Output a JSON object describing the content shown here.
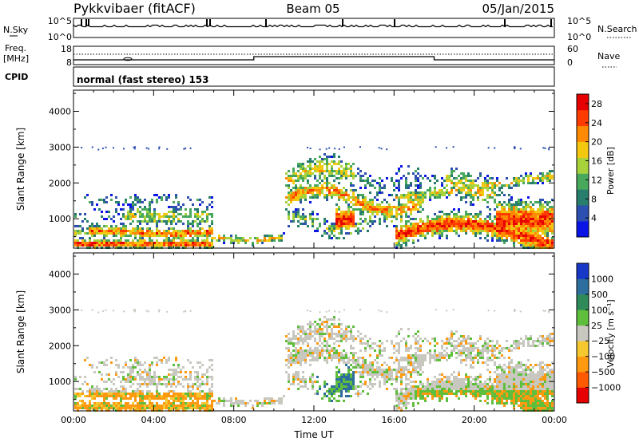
{
  "header": {
    "station": "Pykkvibaer (fitACF)",
    "beam": "Beam 05",
    "date": "05/Jan/2015"
  },
  "panels": {
    "nsky": {
      "label": "N.Sky",
      "tick_top": "10^5",
      "tick_bottom": "10^0",
      "right_label": "N.Search",
      "right_tick_top": "10^5",
      "right_tick_bottom": "10^0"
    },
    "freq": {
      "label_line1": "Freq.",
      "label_line2": "[MHz]",
      "tick_top": "18",
      "tick_bottom": "8",
      "right_label": "Nave",
      "right_tick_top": "60",
      "right_tick_bottom": "0"
    },
    "cpid": {
      "label": "CPID",
      "text": "normal (fast stereo) 153"
    }
  },
  "chart_data": [
    {
      "type": "heatmap",
      "parameter": "Power",
      "ylabel": "Slant Range [km]",
      "xlabel": "",
      "x_ticks": [
        "00:00",
        "04:00",
        "08:00",
        "12:00",
        "16:00",
        "20:00",
        "00:00"
      ],
      "xlim_hours": [
        0,
        24
      ],
      "y_ticks": [
        1000,
        2000,
        3000,
        4000
      ],
      "ylim": [
        180,
        4590
      ],
      "colorbar": {
        "label": "Power [dB]",
        "ticks": [
          4,
          8,
          12,
          16,
          20,
          24,
          28
        ],
        "range": [
          0,
          30
        ],
        "colors": [
          "#0a14e6",
          "#2c4fb0",
          "#277e6c",
          "#48a85c",
          "#a8d23c",
          "#f5c810",
          "#ff8a00",
          "#ff3c00",
          "#e60000"
        ]
      }
    },
    {
      "type": "heatmap",
      "parameter": "Velocity",
      "ylabel": "Slant Range [km]",
      "xlabel": "Time UT",
      "x_ticks": [
        "00:00",
        "04:00",
        "08:00",
        "12:00",
        "16:00",
        "20:00",
        "00:00"
      ],
      "xlim_hours": [
        0,
        24
      ],
      "y_ticks": [
        1000,
        2000,
        3000,
        4000
      ],
      "ylim": [
        180,
        4590
      ],
      "colorbar": {
        "label": "Velocity [m s⁻¹]",
        "ticks": [
          "1000",
          "500",
          "100",
          "25",
          "−25",
          "−100",
          "−500",
          "−1000"
        ],
        "colors": [
          "#1838c8",
          "#2e6e9e",
          "#2f8a5a",
          "#5fbf3c",
          "#c8c8c0",
          "#f5c830",
          "#ff9a10",
          "#ff5a00",
          "#e60000"
        ]
      }
    }
  ]
}
